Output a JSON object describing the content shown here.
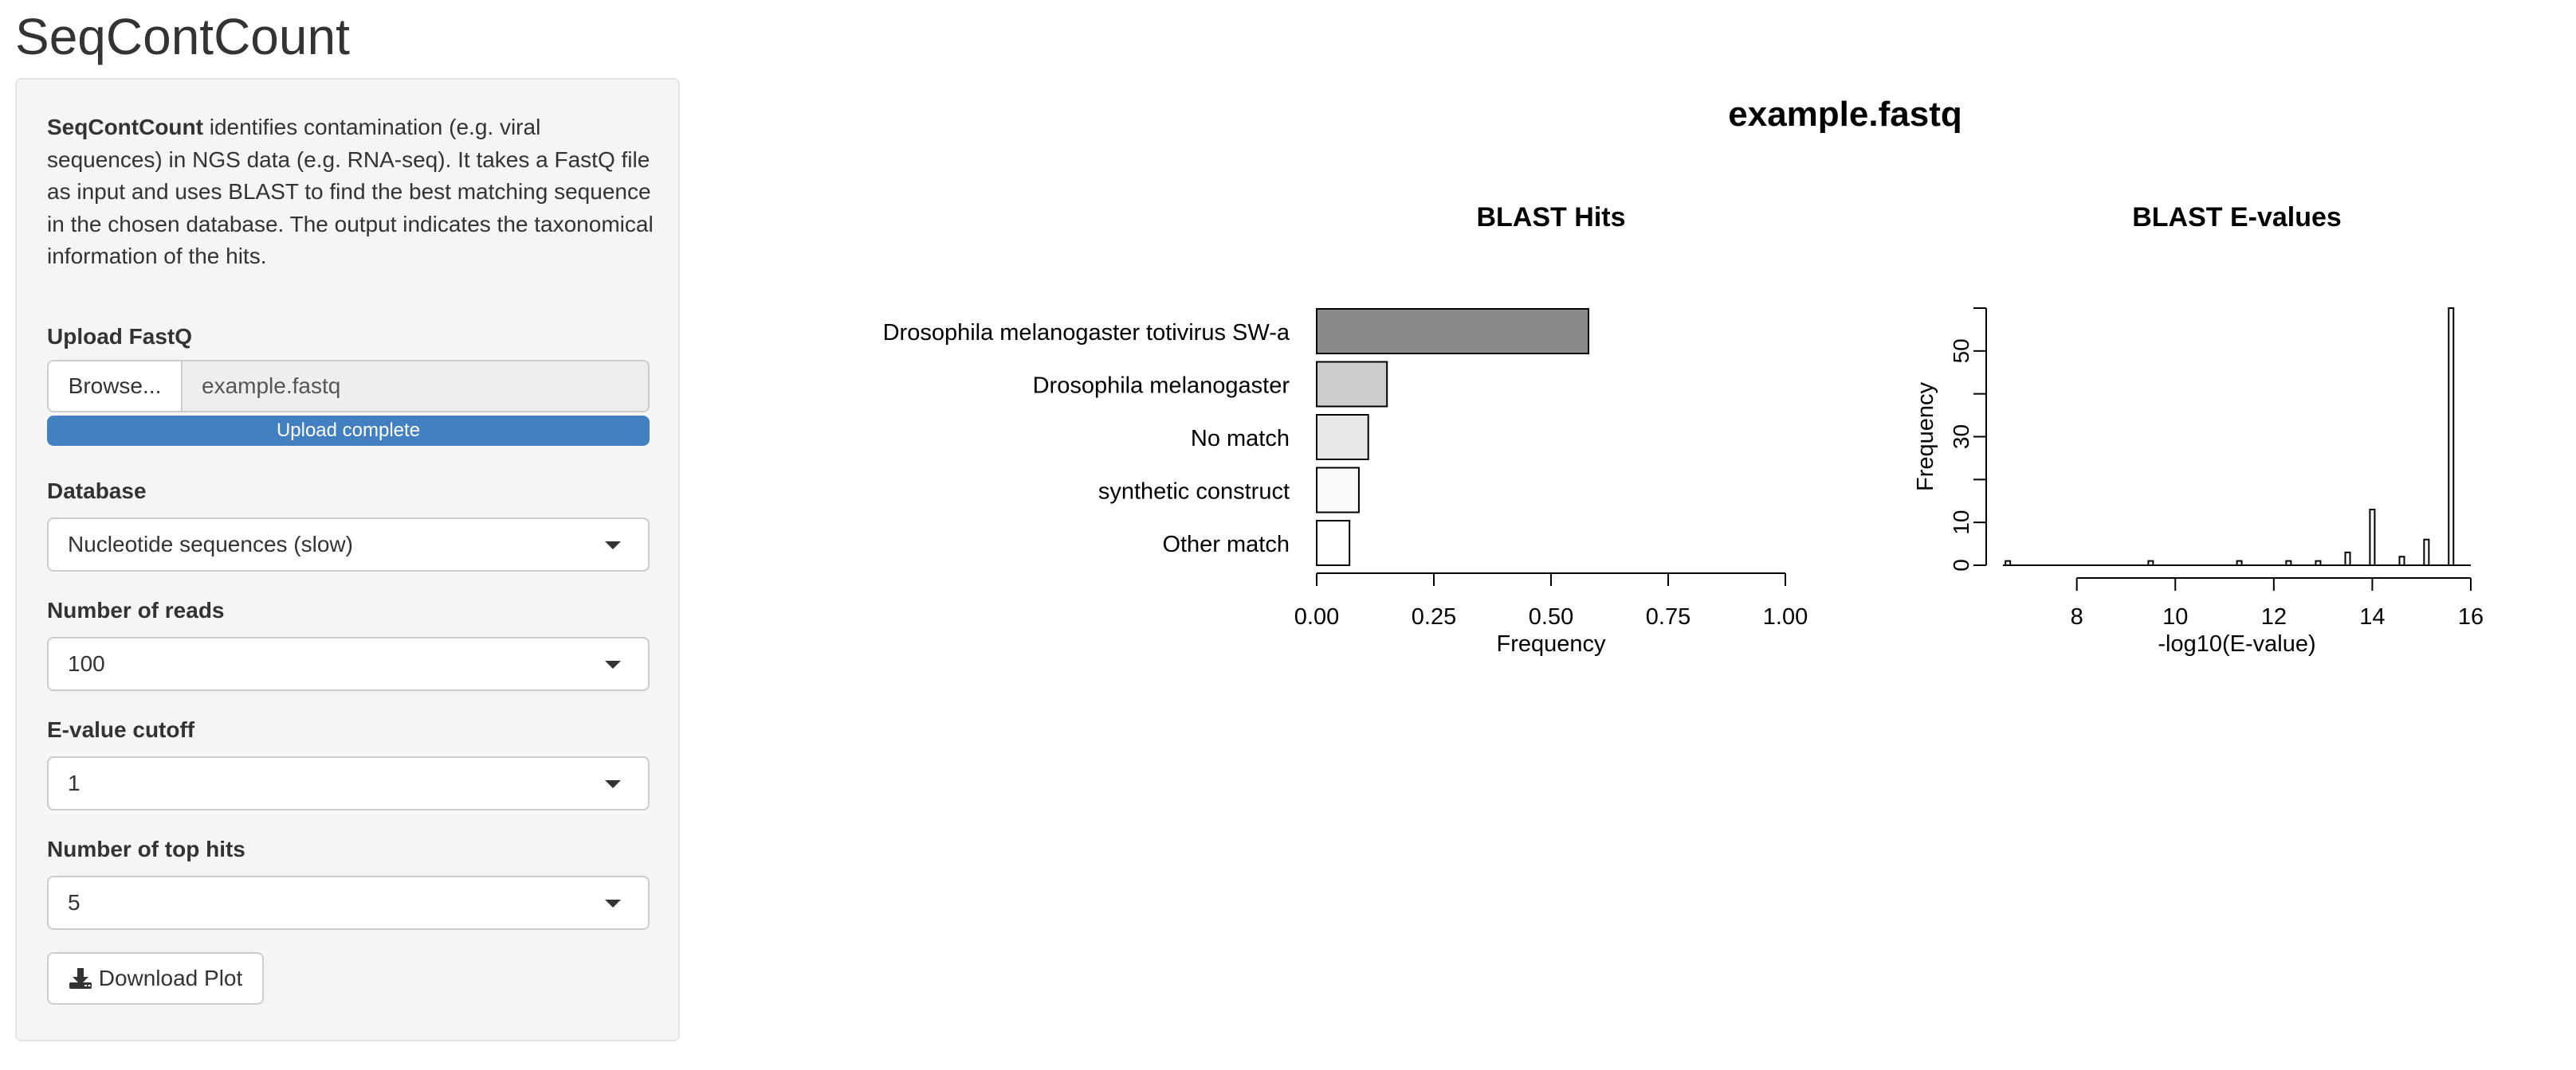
{
  "app": {
    "title": "SeqContCount"
  },
  "sidebar": {
    "description_app_name": "SeqContCount",
    "description_text": " identifies contamination (e.g. viral sequences) in NGS data (e.g. RNA-seq). It takes a FastQ file as input and uses BLAST to find the best matching sequence in the chosen database. The output indicates the taxonomical information of the hits.",
    "upload": {
      "label": "Upload FastQ",
      "browse_label": "Browse...",
      "filename": "example.fastq",
      "progress_text": "Upload complete",
      "progress": 1.0
    },
    "database": {
      "label": "Database",
      "selected": "Nucleotide sequences (slow)"
    },
    "num_reads": {
      "label": "Number of reads",
      "selected": "100"
    },
    "evalue_cutoff": {
      "label": "E-value cutoff",
      "selected": "1"
    },
    "top_hits": {
      "label": "Number of top hits",
      "selected": "5"
    },
    "download": {
      "label": "Download Plot",
      "icon": "download-icon"
    }
  },
  "plot": {
    "main_title": "example.fastq"
  },
  "chart_data": [
    {
      "type": "bar",
      "orientation": "horizontal",
      "title": "BLAST Hits",
      "xlabel": "Frequency",
      "ylabel": "",
      "categories": [
        "Drosophila melanogaster totivirus SW-a",
        "Drosophila melanogaster",
        "No match",
        "synthetic construct",
        "Other match"
      ],
      "values": [
        0.58,
        0.15,
        0.11,
        0.09,
        0.07
      ],
      "colors": [
        "#8a8a8a",
        "#cccccc",
        "#e8e8e8",
        "#fbf8f8",
        "#ffffff"
      ],
      "xlim": [
        0,
        1
      ],
      "xticks": [
        "0.00",
        "0.25",
        "0.50",
        "0.75",
        "1.00"
      ],
      "grid": false
    },
    {
      "type": "bar",
      "subtype": "histogram",
      "title": "BLAST E-values",
      "xlabel": "-log10(E-value)",
      "ylabel": "Frequency",
      "xlim": [
        6.5,
        16.0
      ],
      "ylim": [
        0,
        60
      ],
      "xticks": [
        8,
        10,
        12,
        14,
        16
      ],
      "yticks": [
        0,
        10,
        30,
        50
      ],
      "bins": [
        {
          "x": 6.6,
          "count": 1
        },
        {
          "x": 9.5,
          "count": 1
        },
        {
          "x": 11.3,
          "count": 1
        },
        {
          "x": 12.3,
          "count": 1
        },
        {
          "x": 12.9,
          "count": 1
        },
        {
          "x": 13.5,
          "count": 3
        },
        {
          "x": 14.0,
          "count": 13
        },
        {
          "x": 14.6,
          "count": 2
        },
        {
          "x": 15.1,
          "count": 6
        },
        {
          "x": 15.6,
          "count": 60
        }
      ],
      "grid": false
    }
  ]
}
